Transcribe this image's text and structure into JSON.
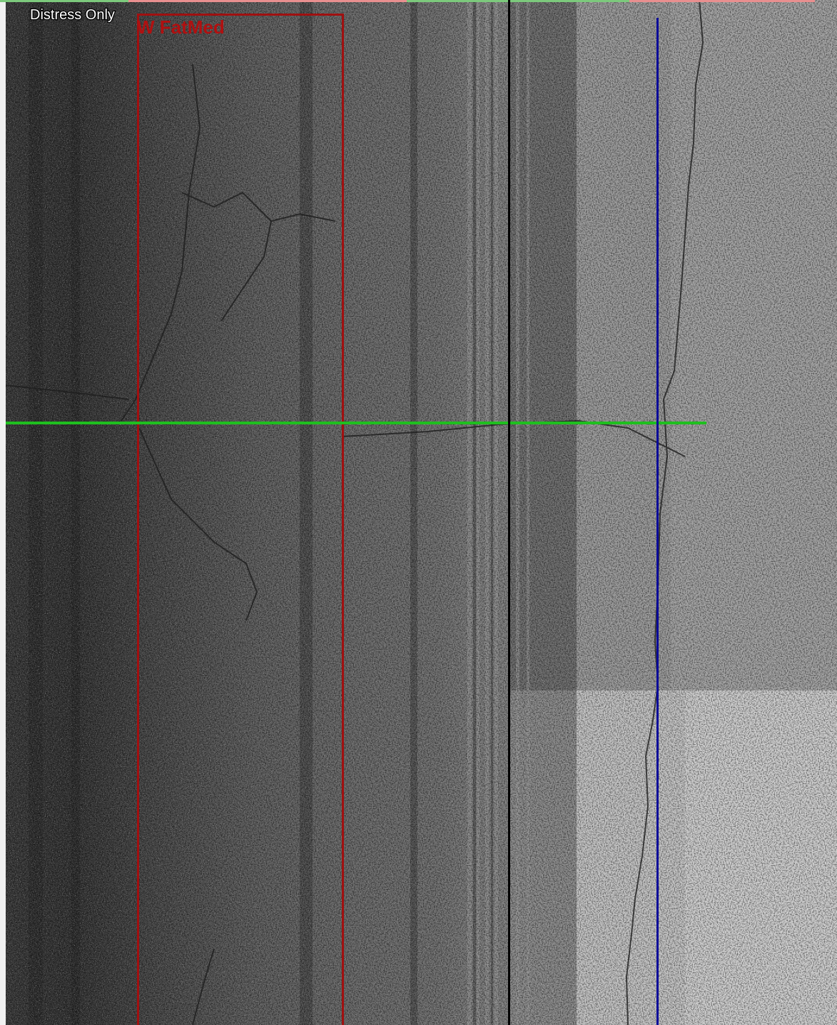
{
  "overlay": {
    "mode_label": "Distress Only",
    "distress_label": "W FatMed"
  }
}
